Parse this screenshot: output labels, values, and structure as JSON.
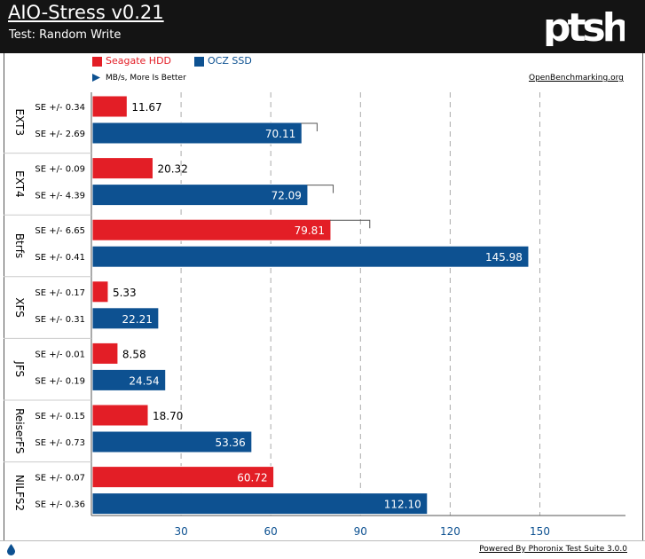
{
  "header": {
    "title": "AIO-Stress v0.21",
    "subtitle": "Test: Random Write",
    "logo": "ptsh"
  },
  "legend": {
    "items": [
      {
        "name": "Seagate HDD",
        "color": "#e31e26"
      },
      {
        "name": "OCZ SSD",
        "color": "#0d5191"
      }
    ]
  },
  "note": "MB/s, More Is Better",
  "site": "OpenBenchmarking.org",
  "footer": "Powered By Phoronix Test Suite 3.0.0",
  "chart_data": {
    "type": "bar",
    "orientation": "horizontal",
    "unit": "MB/s",
    "xlim": [
      0,
      180
    ],
    "ticks": [
      30,
      60,
      90,
      120,
      150
    ],
    "categories": [
      "EXT3",
      "EXT4",
      "Btrfs",
      "XFS",
      "JFS",
      "ReiserFS",
      "NILFS2"
    ],
    "series": [
      {
        "name": "Seagate HDD",
        "color": "#e31e26",
        "values": [
          11.67,
          20.32,
          79.81,
          5.33,
          8.58,
          18.7,
          60.72
        ],
        "labels": [
          "11.67",
          "20.32",
          "79.81",
          "5.33",
          "8.58",
          "18.70",
          "60.72"
        ],
        "se": [
          "SE +/- 0.34",
          "SE +/- 0.09",
          "SE +/- 6.65",
          "SE +/- 0.17",
          "SE +/- 0.01",
          "SE +/- 0.15",
          "SE +/- 0.07"
        ],
        "se_values": [
          0.34,
          0.09,
          6.65,
          0.17,
          0.01,
          0.15,
          0.07
        ]
      },
      {
        "name": "OCZ SSD",
        "color": "#0d5191",
        "values": [
          70.11,
          72.09,
          145.98,
          22.21,
          24.54,
          53.36,
          112.1
        ],
        "labels": [
          "70.11",
          "72.09",
          "145.98",
          "22.21",
          "24.54",
          "53.36",
          "112.10"
        ],
        "se": [
          "SE +/- 2.69",
          "SE +/- 4.39",
          "SE +/- 0.41",
          "SE +/- 0.31",
          "SE +/- 0.19",
          "SE +/- 0.73",
          "SE +/- 0.36"
        ],
        "se_values": [
          2.69,
          4.39,
          0.41,
          0.31,
          0.19,
          0.73,
          0.36
        ]
      }
    ]
  }
}
